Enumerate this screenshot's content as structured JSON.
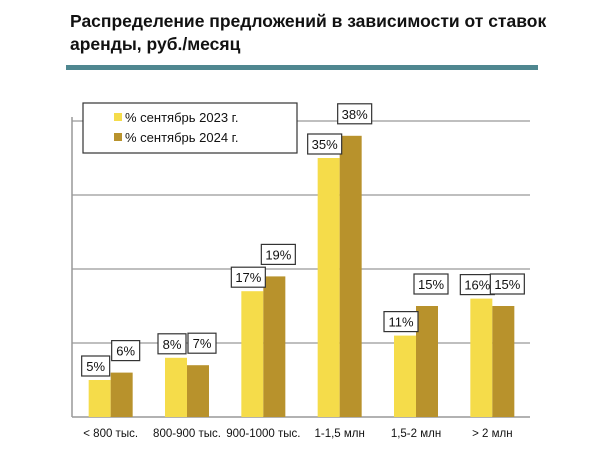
{
  "chart_data": {
    "type": "bar",
    "title": "Распределение предложений в зависимости от ставок аренды, руб./месяц",
    "categories": [
      "< 800 тыс.",
      "800-900 тыс.",
      "900-1000 тыс.",
      "1-1,5 млн",
      "1,5-2 млн",
      "> 2 млн"
    ],
    "series": [
      {
        "name": "% сентябрь 2023 г.",
        "values": [
          5,
          8,
          17,
          35,
          11,
          16
        ],
        "labels": [
          "5%",
          "8%",
          "17%",
          "35%",
          "11%",
          "16%"
        ],
        "color": "#f5dc4a"
      },
      {
        "name": "% сентябрь 2024 г.",
        "values": [
          6,
          7,
          19,
          38,
          15,
          15
        ],
        "labels": [
          "6%",
          "7%",
          "19%",
          "38%",
          "15%",
          "15%"
        ],
        "color": "#b8922c"
      }
    ],
    "ylim": [
      0,
      40
    ],
    "gridlines": [
      10,
      20,
      30,
      40
    ],
    "grid": true,
    "legend": "top-left",
    "xlabel": "",
    "ylabel": ""
  },
  "colors": {
    "rule": "#4f8790",
    "grid": "#999999"
  }
}
